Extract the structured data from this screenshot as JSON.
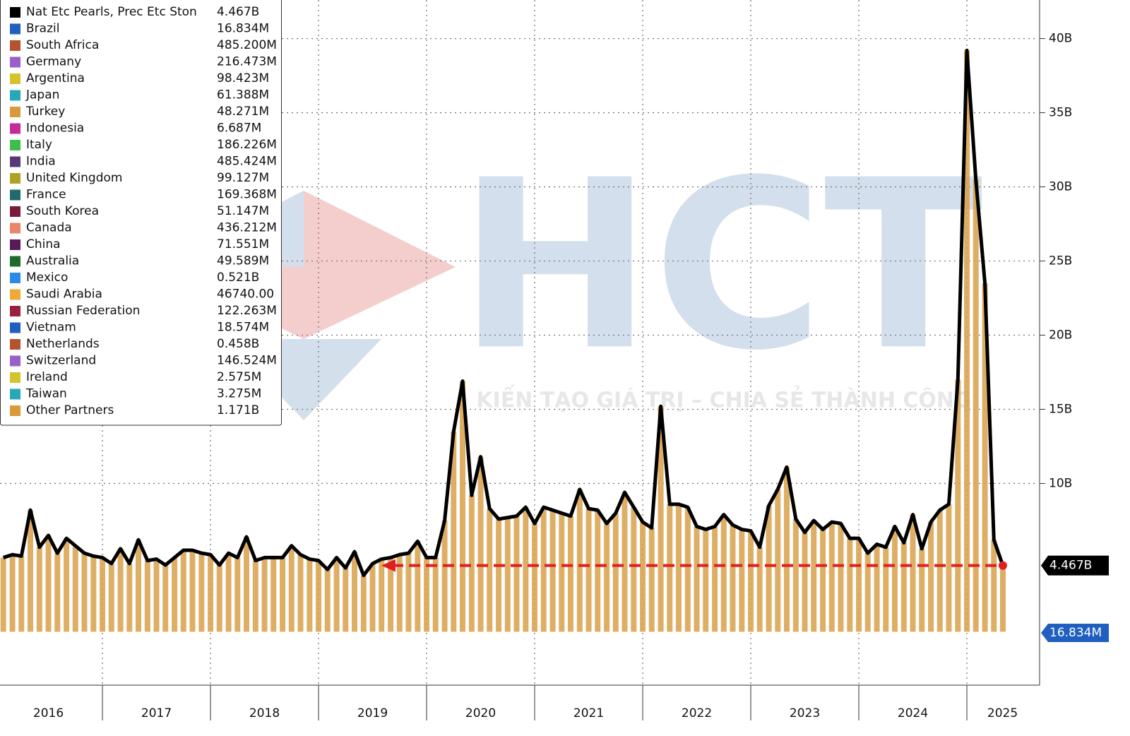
{
  "chart_data": {
    "type": "stacked-total",
    "watermark": {
      "logo": "HCT",
      "slogan": "KIẾN TẠO GIÁ TRỊ – CHIA SẺ THÀNH CÔNG"
    },
    "x": [
      2016.083,
      2016.167,
      2016.25,
      2016.333,
      2016.417,
      2016.5,
      2016.583,
      2016.667,
      2016.75,
      2016.833,
      2016.917,
      2017.0,
      2017.083,
      2017.167,
      2017.25,
      2017.333,
      2017.417,
      2017.5,
      2017.583,
      2017.667,
      2017.75,
      2017.833,
      2017.917,
      2018.0,
      2018.083,
      2018.167,
      2018.25,
      2018.333,
      2018.417,
      2018.5,
      2018.583,
      2018.667,
      2018.75,
      2018.833,
      2018.917,
      2019.0,
      2019.083,
      2019.167,
      2019.25,
      2019.333,
      2019.417,
      2019.5,
      2019.583,
      2019.667,
      2019.75,
      2019.833,
      2019.917,
      2020.0,
      2020.083,
      2020.167,
      2020.25,
      2020.333,
      2020.417,
      2020.5,
      2020.583,
      2020.667,
      2020.75,
      2020.833,
      2020.917,
      2021.0,
      2021.083,
      2021.167,
      2021.25,
      2021.333,
      2021.417,
      2021.5,
      2021.583,
      2021.667,
      2021.75,
      2021.833,
      2021.917,
      2022.0,
      2022.083,
      2022.167,
      2022.25,
      2022.333,
      2022.417,
      2022.5,
      2022.583,
      2022.667,
      2022.75,
      2022.833,
      2022.917,
      2023.0,
      2023.083,
      2023.167,
      2023.25,
      2023.333,
      2023.417,
      2023.5,
      2023.583,
      2023.667,
      2023.75,
      2023.833,
      2023.917,
      2024.0,
      2024.083,
      2024.167,
      2024.25,
      2024.333,
      2024.417,
      2024.5,
      2024.583,
      2024.667,
      2024.75,
      2024.833,
      2024.917,
      2025.0,
      2025.083,
      2025.167,
      2025.25,
      2025.333
    ],
    "series": [
      {
        "name": "Nat Etc Pearls, Prec Etc Ston",
        "color": "#000000",
        "bar_color": "#d9a04a",
        "values": [
          5.0,
          5.2,
          5.1,
          8.2,
          5.7,
          6.5,
          5.3,
          6.3,
          5.8,
          5.3,
          5.1,
          5.0,
          4.6,
          5.6,
          4.6,
          6.2,
          4.8,
          4.9,
          4.5,
          5.0,
          5.5,
          5.5,
          5.3,
          5.2,
          4.5,
          5.3,
          5.0,
          6.4,
          4.8,
          5.0,
          5.0,
          5.0,
          5.8,
          5.2,
          4.9,
          4.8,
          4.2,
          5.0,
          4.3,
          5.4,
          3.8,
          4.6,
          4.9,
          5.0,
          5.2,
          5.3,
          6.1,
          5.0,
          5.0,
          7.5,
          13.5,
          16.9,
          9.2,
          11.8,
          8.3,
          7.6,
          7.7,
          7.8,
          8.4,
          7.3,
          8.4,
          8.2,
          8.0,
          7.8,
          9.6,
          8.3,
          8.2,
          7.3,
          8.0,
          9.4,
          8.4,
          7.4,
          7.0,
          15.2,
          8.6,
          8.6,
          8.4,
          7.1,
          6.9,
          7.1,
          7.9,
          7.2,
          6.9,
          6.8,
          5.7,
          8.5,
          9.6,
          11.1,
          7.6,
          6.7,
          7.5,
          6.9,
          7.4,
          7.3,
          6.3,
          6.3,
          5.3,
          5.9,
          5.7,
          7.1,
          6.0,
          7.9,
          5.6,
          7.4,
          8.2,
          8.6,
          17.0,
          39.2,
          30.5,
          23.5,
          6.2,
          4.467
        ],
        "last_label": "4.467B"
      }
    ],
    "legend": [
      {
        "name": "Nat Etc Pearls, Prec Etc Ston",
        "color": "#000000",
        "value": 4.467,
        "label": "4.467B"
      },
      {
        "name": "Brazil",
        "color": "#1f5fbf",
        "value": 0.016834,
        "label": "16.834M"
      },
      {
        "name": "South Africa",
        "color": "#b5532e",
        "value": 0.4852,
        "label": "485.200M"
      },
      {
        "name": "Germany",
        "color": "#9b5fc8",
        "value": 0.216473,
        "label": "216.473M"
      },
      {
        "name": "Argentina",
        "color": "#d6c22a",
        "value": 0.098423,
        "label": "98.423M"
      },
      {
        "name": "Japan",
        "color": "#26a8b8",
        "value": 0.061388,
        "label": "61.388M"
      },
      {
        "name": "Turkey",
        "color": "#d99a3a",
        "value": 0.048271,
        "label": "48.271M"
      },
      {
        "name": "Indonesia",
        "color": "#c42a9a",
        "value": 0.006687,
        "label": "6.687M"
      },
      {
        "name": "Italy",
        "color": "#3cbf4a",
        "value": 0.186226,
        "label": "186.226M"
      },
      {
        "name": "India",
        "color": "#55397a",
        "value": 0.485424,
        "label": "485.424M"
      },
      {
        "name": "United Kingdom",
        "color": "#b0a026",
        "value": 0.099127,
        "label": "99.127M"
      },
      {
        "name": "France",
        "color": "#1f6b6b",
        "value": 0.169368,
        "label": "169.368M"
      },
      {
        "name": "South Korea",
        "color": "#7a1a3a",
        "value": 0.051147,
        "label": "51.147M"
      },
      {
        "name": "Canada",
        "color": "#e8866a",
        "value": 0.436212,
        "label": "436.212M"
      },
      {
        "name": "China",
        "color": "#5a1a5a",
        "value": 0.071551,
        "label": "71.551M"
      },
      {
        "name": "Australia",
        "color": "#1d6b2a",
        "value": 0.049589,
        "label": "49.589M"
      },
      {
        "name": "Mexico",
        "color": "#2a8ae8",
        "value": 0.521,
        "label": "0.521B"
      },
      {
        "name": "Saudi Arabia",
        "color": "#f0a838",
        "value": 4.674e-05,
        "label": "46740.00"
      },
      {
        "name": "Russian Federation",
        "color": "#9a2040",
        "value": 0.122263,
        "label": "122.263M"
      },
      {
        "name": "Vietnam",
        "color": "#1f5fbf",
        "value": 0.018574,
        "label": "18.574M"
      },
      {
        "name": "Netherlands",
        "color": "#b5532e",
        "value": 0.458,
        "label": "0.458B"
      },
      {
        "name": "Switzerland",
        "color": "#9b5fc8",
        "value": 0.146524,
        "label": "146.524M"
      },
      {
        "name": "Ireland",
        "color": "#d6c22a",
        "value": 0.002575,
        "label": "2.575M"
      },
      {
        "name": "Taiwan",
        "color": "#26a8b8",
        "value": 0.003275,
        "label": "3.275M"
      },
      {
        "name": "Other Partners",
        "color": "#d99a3a",
        "value": 1.171,
        "label": "1.171B"
      }
    ],
    "ylim": [
      -3.6,
      42.6
    ],
    "yticks": [
      {
        "value": 10,
        "label": "10B"
      },
      {
        "value": 15,
        "label": "15B"
      },
      {
        "value": 20,
        "label": "20B"
      },
      {
        "value": 25,
        "label": "25B"
      },
      {
        "value": 30,
        "label": "30B"
      },
      {
        "value": 35,
        "label": "35B"
      },
      {
        "value": 40,
        "label": "40B"
      }
    ],
    "xlim": [
      2016.052,
      2025.66
    ],
    "x_separators": [
      2017,
      2018,
      2019,
      2020,
      2021,
      2022,
      2023,
      2024,
      2025
    ],
    "year_labels": [
      {
        "value": 2016.5,
        "label": "2016"
      },
      {
        "value": 2017.5,
        "label": "2017"
      },
      {
        "value": 2018.5,
        "label": "2018"
      },
      {
        "value": 2019.5,
        "label": "2019"
      },
      {
        "value": 2020.5,
        "label": "2020"
      },
      {
        "value": 2021.5,
        "label": "2021"
      },
      {
        "value": 2022.5,
        "label": "2022"
      },
      {
        "value": 2023.5,
        "label": "2023"
      },
      {
        "value": 2024.5,
        "label": "2024"
      },
      {
        "value": 2025.33,
        "label": "2025"
      }
    ],
    "grid": true
  }
}
